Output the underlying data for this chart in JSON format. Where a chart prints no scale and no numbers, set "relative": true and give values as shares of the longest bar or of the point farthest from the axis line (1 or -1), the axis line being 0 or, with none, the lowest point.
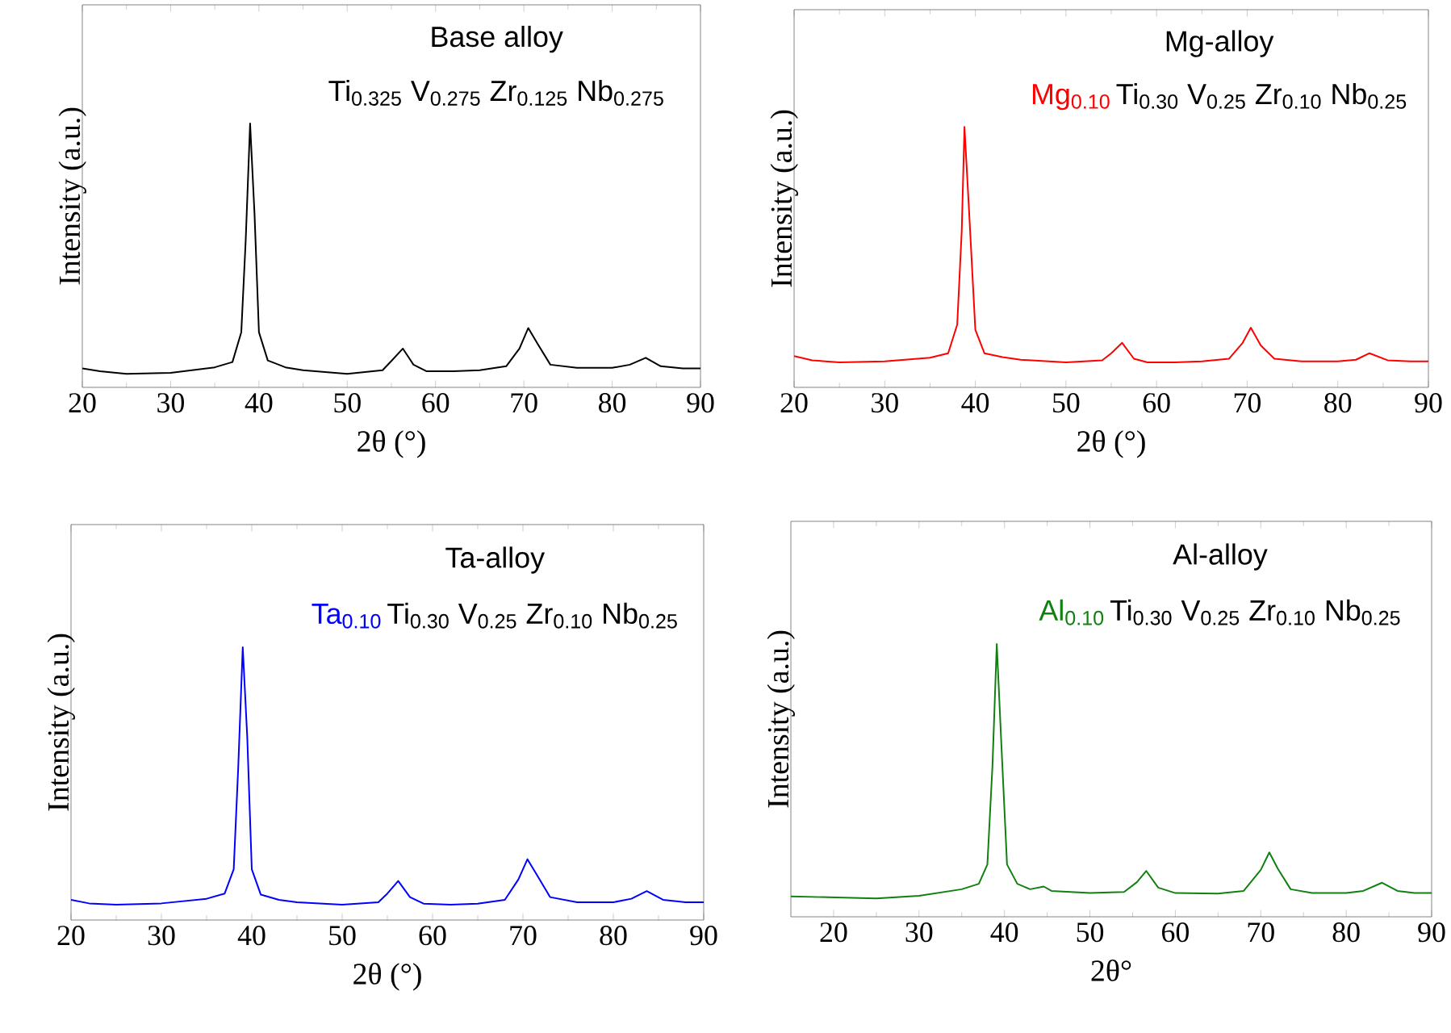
{
  "chart_data": [
    {
      "type": "line",
      "title": "Base alloy",
      "subtitle": "Ti$_{0.325}$ V$_{0.275}$ Zr$_{0.125}$ Nb$_{0.275}$",
      "xlabel": "2θ (°)",
      "ylabel": "Intensity (a.u.)",
      "relative": true,
      "xlim": [
        20,
        90
      ],
      "xticks": [
        20,
        30,
        40,
        50,
        60,
        70,
        80,
        90
      ],
      "x": [
        20,
        22,
        25,
        30,
        35,
        37,
        38,
        38.5,
        39,
        39.5,
        40,
        41,
        43,
        45,
        50,
        54,
        55,
        56.3,
        57.5,
        59,
        62,
        65,
        68,
        69.5,
        70.5,
        71.5,
        73,
        76,
        80,
        82,
        83.8,
        85.5,
        88,
        90
      ],
      "series": [
        {
          "color": "#000000",
          "values": [
            0.072,
            0.061,
            0.051,
            0.055,
            0.076,
            0.096,
            0.209,
            0.556,
            1.0,
            0.658,
            0.209,
            0.102,
            0.076,
            0.065,
            0.051,
            0.065,
            0.1,
            0.147,
            0.086,
            0.061,
            0.061,
            0.065,
            0.08,
            0.147,
            0.225,
            0.168,
            0.086,
            0.074,
            0.074,
            0.086,
            0.112,
            0.08,
            0.072,
            0.072
          ]
        }
      ]
    },
    {
      "type": "line",
      "title": "Mg-alloy",
      "subtitle": "Ti$_{0.30}$ V$_{0.25}$ Zr$_{0.10}$ Nb$_{0.25}$",
      "annotations": [
        "Mg$_{0.10}$"
      ],
      "xlabel": "2θ (°)",
      "ylabel": "Intensity (a.u.)",
      "relative": true,
      "xlim": [
        20,
        90
      ],
      "xticks": [
        20,
        30,
        40,
        50,
        60,
        70,
        80,
        90
      ],
      "x": [
        20,
        22,
        25,
        30,
        35,
        37,
        38,
        38.5,
        38.8,
        39.3,
        40,
        41,
        43,
        45,
        50,
        54,
        55,
        56.2,
        57.5,
        59,
        62,
        65,
        68,
        69.5,
        70.4,
        71.5,
        73,
        76,
        80,
        82,
        83.5,
        85.5,
        88,
        90
      ],
      "series": [
        {
          "color": "#ff0000",
          "values": [
            0.12,
            0.104,
            0.096,
            0.1,
            0.114,
            0.131,
            0.241,
            0.602,
            1.0,
            0.683,
            0.221,
            0.131,
            0.116,
            0.106,
            0.096,
            0.104,
            0.131,
            0.171,
            0.11,
            0.096,
            0.096,
            0.1,
            0.11,
            0.171,
            0.229,
            0.161,
            0.11,
            0.1,
            0.1,
            0.106,
            0.131,
            0.104,
            0.1,
            0.1
          ]
        }
      ]
    },
    {
      "type": "line",
      "title": "Ta-alloy",
      "subtitle": "Ti$_{0.30}$ V$_{0.25}$ Zr$_{0.10}$ Nb$_{0.25}$",
      "annotations": [
        "Ta$_{0.10}$"
      ],
      "xlabel": "2θ (°)",
      "ylabel": "Intensity (a.u.)",
      "relative": true,
      "xlim": [
        20,
        90
      ],
      "xticks": [
        20,
        30,
        40,
        50,
        60,
        70,
        80,
        90
      ],
      "x": [
        20,
        22,
        25,
        30,
        35,
        37,
        38,
        38.5,
        39,
        39.5,
        40,
        41,
        43,
        45,
        50,
        54,
        55,
        56.2,
        57.5,
        59,
        62,
        65,
        68,
        69.5,
        70.5,
        71.5,
        73,
        76,
        80,
        82,
        83.7,
        85.5,
        88,
        90
      ],
      "series": [
        {
          "color": "#0000ff",
          "values": [
            0.074,
            0.061,
            0.056,
            0.061,
            0.078,
            0.097,
            0.186,
            0.559,
            1.0,
            0.67,
            0.186,
            0.093,
            0.074,
            0.065,
            0.056,
            0.065,
            0.097,
            0.143,
            0.084,
            0.06,
            0.056,
            0.06,
            0.074,
            0.149,
            0.223,
            0.168,
            0.084,
            0.065,
            0.065,
            0.078,
            0.106,
            0.074,
            0.065,
            0.065
          ]
        }
      ]
    },
    {
      "type": "line",
      "title": "Al-alloy",
      "subtitle": "Ti$_{0.30}$ V$_{0.25}$ Zr$_{0.10}$ Nb$_{0.25}$",
      "annotations": [
        "Al$_{0.10}$"
      ],
      "xlabel": "2θ°",
      "ylabel": "Intensity (a.u.)",
      "relative": true,
      "xlim": [
        15,
        90
      ],
      "xticks": [
        20,
        30,
        40,
        50,
        60,
        70,
        80,
        90
      ],
      "x": [
        15,
        20,
        25,
        30,
        35,
        37,
        38,
        38.6,
        39.1,
        39.6,
        40.3,
        41.5,
        43,
        44.6,
        45.5,
        50,
        54,
        55.5,
        56.6,
        58,
        60,
        65,
        68,
        70,
        71,
        72,
        73.5,
        76,
        80,
        82,
        84.2,
        86,
        88,
        90
      ],
      "series": [
        {
          "color": "#108010",
          "values": [
            0.075,
            0.071,
            0.067,
            0.077,
            0.101,
            0.121,
            0.192,
            0.556,
            1.0,
            0.657,
            0.192,
            0.121,
            0.101,
            0.111,
            0.095,
            0.087,
            0.091,
            0.127,
            0.168,
            0.107,
            0.087,
            0.085,
            0.095,
            0.172,
            0.236,
            0.176,
            0.101,
            0.087,
            0.087,
            0.095,
            0.125,
            0.095,
            0.087,
            0.087
          ]
        }
      ]
    }
  ]
}
